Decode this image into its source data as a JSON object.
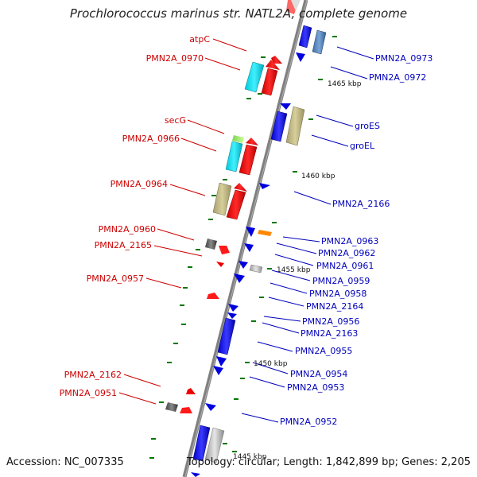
{
  "title": "Prochlorococcus marinus str. NATL2A, complete genome",
  "accession_text": "Accession: NC_007335",
  "summary_text": "Topology: circular; Length: 1,842,899 bp; Genes: 2,205",
  "colors": {
    "left_label": "#cc0000",
    "right_label": "#0000bb",
    "backbone": "#808080",
    "tick_mark": "#007700"
  },
  "kbp_labels": [
    {
      "text": "1465 kbp"
    },
    {
      "text": "1460 kbp"
    },
    {
      "text": "1455 kbp"
    },
    {
      "text": "1450 kbp"
    },
    {
      "text": "1445 kbp"
    }
  ],
  "left_labels": [
    {
      "text": "atpC"
    },
    {
      "text": "PMN2A_0970"
    },
    {
      "text": "secG"
    },
    {
      "text": "PMN2A_0966"
    },
    {
      "text": "PMN2A_0964"
    },
    {
      "text": "PMN2A_0960"
    },
    {
      "text": "PMN2A_2165"
    },
    {
      "text": "PMN2A_0957"
    },
    {
      "text": "PMN2A_2162"
    },
    {
      "text": "PMN2A_0951"
    }
  ],
  "right_labels": [
    {
      "text": "PMN2A_0973"
    },
    {
      "text": "PMN2A_0972"
    },
    {
      "text": "groES"
    },
    {
      "text": "groEL"
    },
    {
      "text": "PMN2A_2166"
    },
    {
      "text": "PMN2A_0963"
    },
    {
      "text": "PMN2A_0962"
    },
    {
      "text": "PMN2A_0961"
    },
    {
      "text": "PMN2A_0959"
    },
    {
      "text": "PMN2A_0958"
    },
    {
      "text": "PMN2A_2164"
    },
    {
      "text": "PMN2A_0956"
    },
    {
      "text": "PMN2A_2163"
    },
    {
      "text": "PMN2A_0955"
    },
    {
      "text": "PMN2A_0954"
    },
    {
      "text": "PMN2A_0953"
    },
    {
      "text": "PMN2A_0952"
    }
  ]
}
